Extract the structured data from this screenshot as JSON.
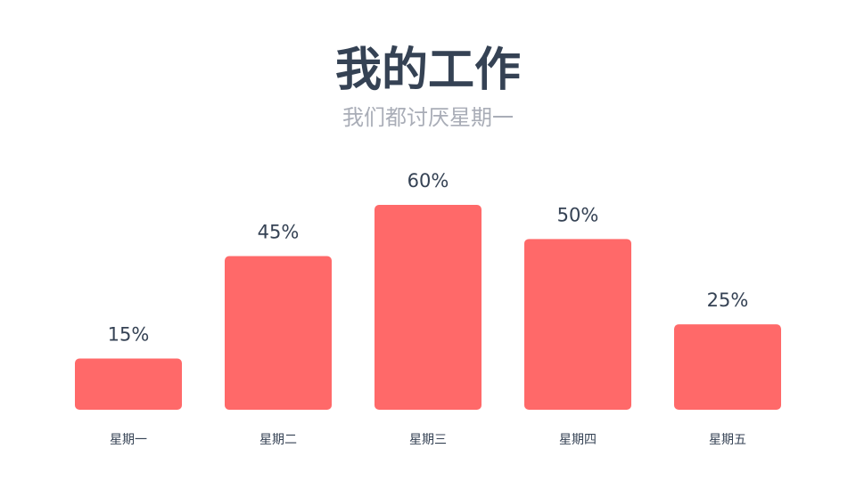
{
  "title": "我的工作",
  "subtitle": "我们都讨厌星期一",
  "colors": {
    "bar": "#ff6969",
    "title": "#354254",
    "subtitle": "#a9adb7",
    "text": "#354254"
  },
  "chart_data": {
    "type": "bar",
    "title": "我的工作",
    "subtitle": "我们都讨厌星期一",
    "categories": [
      "星期一",
      "星期二",
      "星期三",
      "星期四",
      "星期五"
    ],
    "values": [
      15,
      45,
      60,
      50,
      25
    ],
    "value_labels": [
      "15%",
      "45%",
      "60%",
      "50%",
      "25%"
    ],
    "ylim": [
      0,
      60
    ],
    "grid": false,
    "legend": "none",
    "xlabel": "",
    "ylabel": ""
  }
}
